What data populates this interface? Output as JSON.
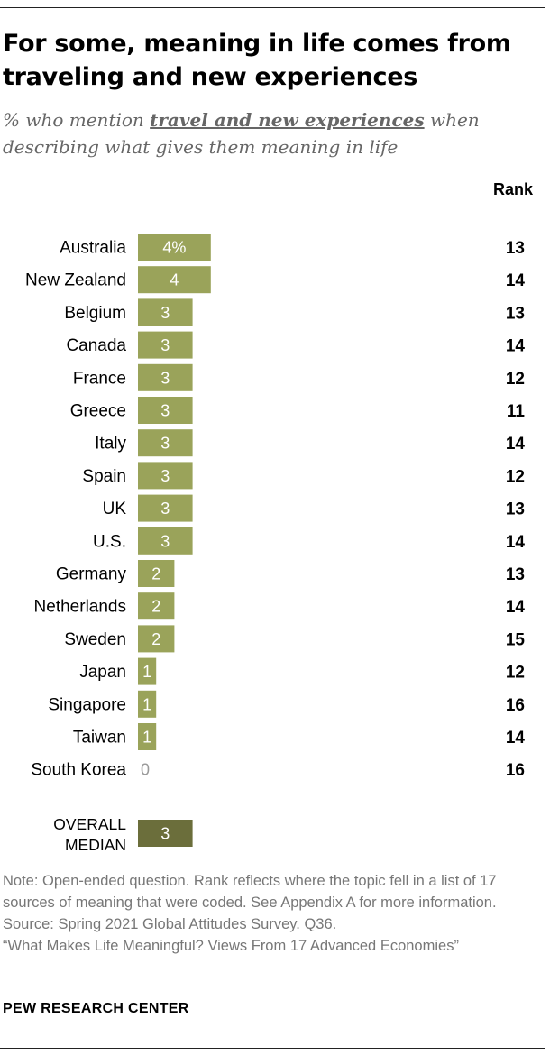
{
  "title": "For some, meaning in life comes from traveling and new experiences",
  "subtitle": {
    "prefix": "% who mention ",
    "highlight": "travel and new experiences",
    "suffix": " when describing what gives them meaning in life"
  },
  "rank_header": "Rank",
  "chart_data": {
    "type": "bar",
    "orientation": "horizontal",
    "unit": "%",
    "categories": [
      "Australia",
      "New Zealand",
      "Belgium",
      "Canada",
      "France",
      "Greece",
      "Italy",
      "Spain",
      "UK",
      "U.S.",
      "Germany",
      "Netherlands",
      "Sweden",
      "Japan",
      "Singapore",
      "Taiwan",
      "South Korea"
    ],
    "values": [
      4,
      4,
      3,
      3,
      3,
      3,
      3,
      3,
      3,
      3,
      2,
      2,
      2,
      1,
      1,
      1,
      0
    ],
    "value_labels": [
      "4%",
      "4",
      "3",
      "3",
      "3",
      "3",
      "3",
      "3",
      "3",
      "3",
      "2",
      "2",
      "2",
      "1",
      "1",
      "1",
      "0"
    ],
    "ranks": [
      "13",
      "14",
      "13",
      "14",
      "12",
      "11",
      "14",
      "12",
      "13",
      "14",
      "13",
      "14",
      "15",
      "12",
      "16",
      "14",
      "16"
    ],
    "summary": {
      "label_line1": "OVERALL",
      "label_line2": "MEDIAN",
      "value": 3,
      "value_label": "3"
    },
    "xlim": [
      0,
      4
    ],
    "colors": {
      "bar": "#9aa35a",
      "median_bar": "#6b6e3b",
      "bar_text": "#ffffff",
      "zero_text": "#999999"
    }
  },
  "notes": {
    "note": "Note: Open-ended question. Rank reflects where the topic fell in a list of 17 sources of meaning that were coded. See Appendix A for more information.",
    "source": "Source: Spring 2021 Global Attitudes Survey. Q36.",
    "report": "“What Makes Life Meaningful? Views From 17 Advanced Economies”"
  },
  "brand": "PEW RESEARCH CENTER"
}
